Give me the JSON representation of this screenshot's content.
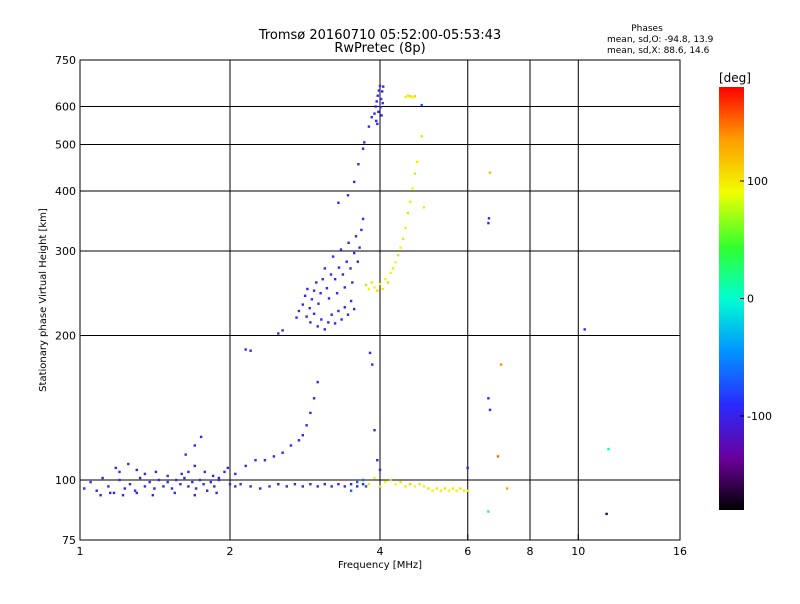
{
  "chart_data": {
    "type": "scatter",
    "title": "Tromsø 20160710 05:52:00-05:53:43",
    "subtitle": "RwPretec (8p)",
    "xlabel": "Frequency [MHz]",
    "ylabel": "Stationary phase Virtual Height [km]",
    "x_scale": "log2",
    "y_scale": "log",
    "xlim": [
      1,
      16
    ],
    "ylim": [
      75,
      750
    ],
    "x_ticks": [
      {
        "value": 1,
        "label": "1"
      },
      {
        "value": 2,
        "label": "2"
      },
      {
        "value": 4,
        "label": "4"
      },
      {
        "value": 6,
        "label": "6"
      },
      {
        "value": 8,
        "label": "8"
      },
      {
        "value": 10,
        "label": "10"
      },
      {
        "value": 16,
        "label": "16"
      }
    ],
    "y_ticks": [
      {
        "value": 75,
        "label": "75"
      },
      {
        "value": 100,
        "label": "100"
      },
      {
        "value": 200,
        "label": "200"
      },
      {
        "value": 300,
        "label": "300"
      },
      {
        "value": 400,
        "label": "400"
      },
      {
        "value": 500,
        "label": "500"
      },
      {
        "value": 600,
        "label": "600"
      },
      {
        "value": 750,
        "label": "750"
      }
    ],
    "x_gridlines": [
      2,
      4,
      6,
      8,
      10
    ],
    "y_gridlines": [
      100,
      200,
      300,
      400,
      500,
      600
    ],
    "stats": {
      "heading": "Phases",
      "line1": "mean, sd,O: -94.8, 13.9",
      "line2": "mean, sd,X:  88.6, 14.6"
    },
    "colorbar": {
      "label": "[deg]",
      "range": [
        -180,
        180
      ],
      "ticks": [
        {
          "value": 100,
          "label": "100"
        },
        {
          "value": 0,
          "label": "0"
        },
        {
          "value": -100,
          "label": "-100"
        }
      ]
    },
    "series": [
      {
        "mode": "O",
        "points": [
          [
            1.02,
            96,
            -95
          ],
          [
            1.05,
            99,
            -92
          ],
          [
            1.08,
            95,
            -100
          ],
          [
            1.11,
            101,
            -96
          ],
          [
            1.14,
            97,
            -93
          ],
          [
            1.17,
            94,
            -98
          ],
          [
            1.2,
            100,
            -95
          ],
          [
            1.23,
            96,
            -90
          ],
          [
            1.26,
            98,
            -99
          ],
          [
            1.29,
            95,
            -94
          ],
          [
            1.32,
            101,
            -97
          ],
          [
            1.35,
            97,
            -92
          ],
          [
            1.38,
            99,
            -96
          ],
          [
            1.41,
            96,
            -100
          ],
          [
            1.44,
            100,
            -93
          ],
          [
            1.47,
            97,
            -95
          ],
          [
            1.5,
            99,
            -91
          ],
          [
            1.53,
            96,
            -97
          ],
          [
            1.56,
            100,
            -94
          ],
          [
            1.59,
            98,
            -96
          ],
          [
            1.62,
            101,
            -92
          ],
          [
            1.65,
            97,
            -99
          ],
          [
            1.68,
            99,
            -95
          ],
          [
            1.71,
            96,
            -93
          ],
          [
            1.74,
            100,
            -97
          ],
          [
            1.77,
            98,
            -91
          ],
          [
            1.8,
            95,
            -96
          ],
          [
            1.83,
            99,
            -94
          ],
          [
            1.86,
            97,
            -98
          ],
          [
            1.9,
            100,
            -92
          ],
          [
            1.18,
            106,
            -95
          ],
          [
            1.2,
            104,
            -92
          ],
          [
            1.25,
            108,
            -97
          ],
          [
            1.3,
            105,
            -94
          ],
          [
            1.35,
            103,
            -99
          ],
          [
            1.42,
            104,
            -93
          ],
          [
            1.5,
            102,
            -96
          ],
          [
            1.6,
            103,
            -90
          ],
          [
            1.65,
            104,
            -95
          ],
          [
            1.7,
            107,
            -92
          ],
          [
            1.78,
            104,
            -97
          ],
          [
            1.85,
            102,
            -94
          ],
          [
            1.9,
            101,
            -91
          ],
          [
            1.95,
            104,
            -96
          ],
          [
            1.98,
            106,
            -93
          ],
          [
            1.1,
            93,
            -94
          ],
          [
            1.15,
            94,
            -97
          ],
          [
            1.22,
            93,
            -91
          ],
          [
            1.3,
            94,
            -98
          ],
          [
            1.4,
            93,
            -95
          ],
          [
            1.55,
            94,
            -92
          ],
          [
            1.7,
            93,
            -96
          ],
          [
            1.88,
            94,
            -93
          ],
          [
            1.75,
            123,
            -95
          ],
          [
            1.63,
            113,
            -92
          ],
          [
            1.7,
            118,
            -90
          ],
          [
            2.0,
            98,
            -96
          ],
          [
            2.05,
            97,
            -92
          ],
          [
            2.1,
            98,
            -95
          ],
          [
            2.2,
            97,
            -97
          ],
          [
            2.3,
            96,
            -94
          ],
          [
            2.4,
            97,
            -91
          ],
          [
            2.5,
            98,
            -96
          ],
          [
            2.6,
            97,
            -93
          ],
          [
            2.7,
            98,
            -95
          ],
          [
            2.8,
            97,
            -92
          ],
          [
            2.9,
            98,
            -97
          ],
          [
            3.0,
            97,
            -94
          ],
          [
            3.1,
            98,
            -96
          ],
          [
            3.2,
            97,
            -91
          ],
          [
            3.3,
            98,
            -95
          ],
          [
            3.4,
            97,
            -93
          ],
          [
            3.5,
            98,
            -96
          ],
          [
            3.6,
            97,
            -94
          ],
          [
            3.7,
            98,
            -92
          ],
          [
            2.05,
            103,
            -95
          ],
          [
            2.15,
            107,
            -94
          ],
          [
            2.25,
            110,
            -96
          ],
          [
            2.35,
            110,
            -92
          ],
          [
            2.45,
            112,
            -97
          ],
          [
            2.55,
            114,
            -93
          ],
          [
            2.65,
            118,
            -95
          ],
          [
            2.75,
            121,
            -91
          ],
          [
            2.8,
            124,
            -96
          ],
          [
            2.85,
            130,
            -94
          ],
          [
            2.9,
            138,
            -92
          ],
          [
            2.95,
            148,
            -97
          ],
          [
            3.0,
            160,
            -95
          ],
          [
            2.15,
            187,
            -93
          ],
          [
            2.2,
            186,
            -96
          ],
          [
            2.5,
            202,
            -92
          ],
          [
            2.55,
            205,
            -95
          ],
          [
            2.72,
            218,
            -97
          ],
          [
            2.75,
            225,
            -94
          ],
          [
            2.8,
            232,
            -92
          ],
          [
            2.83,
            242,
            -96
          ],
          [
            2.86,
            250,
            -93
          ],
          [
            2.89,
            228,
            -95
          ],
          [
            2.92,
            238,
            -91
          ],
          [
            2.95,
            248,
            -97
          ],
          [
            2.98,
            258,
            -94
          ],
          [
            3.01,
            233,
            -92
          ],
          [
            3.04,
            245,
            -96
          ],
          [
            3.07,
            262,
            -93
          ],
          [
            3.1,
            276,
            -95
          ],
          [
            3.13,
            251,
            -91
          ],
          [
            3.16,
            239,
            -97
          ],
          [
            3.19,
            268,
            -94
          ],
          [
            3.22,
            292,
            -92
          ],
          [
            3.25,
            262,
            -96
          ],
          [
            3.28,
            245,
            -93
          ],
          [
            3.31,
            277,
            -95
          ],
          [
            3.34,
            302,
            -91
          ],
          [
            3.37,
            268,
            -97
          ],
          [
            3.4,
            252,
            -94
          ],
          [
            3.43,
            285,
            -92
          ],
          [
            3.46,
            312,
            -96
          ],
          [
            3.49,
            276,
            -93
          ],
          [
            3.52,
            258,
            -95
          ],
          [
            3.55,
            297,
            -91
          ],
          [
            3.58,
            322,
            -97
          ],
          [
            3.61,
            285,
            -94
          ],
          [
            3.64,
            305,
            -92
          ],
          [
            3.67,
            332,
            -96
          ],
          [
            3.7,
            350,
            -93
          ],
          [
            2.85,
            219,
            -95
          ],
          [
            2.9,
            213,
            -92
          ],
          [
            2.95,
            222,
            -97
          ],
          [
            3.0,
            209,
            -94
          ],
          [
            3.05,
            216,
            -96
          ],
          [
            3.1,
            206,
            -91
          ],
          [
            3.15,
            213,
            -95
          ],
          [
            3.2,
            221,
            -93
          ],
          [
            3.25,
            212,
            -97
          ],
          [
            3.3,
            225,
            -94
          ],
          [
            3.35,
            216,
            -92
          ],
          [
            3.4,
            229,
            -96
          ],
          [
            3.45,
            221,
            -93
          ],
          [
            3.5,
            236,
            -95
          ],
          [
            3.55,
            227,
            -91
          ],
          [
            3.3,
            378,
            -95
          ],
          [
            3.45,
            392,
            -92
          ],
          [
            3.55,
            418,
            -97
          ],
          [
            3.62,
            455,
            -94
          ],
          [
            3.7,
            490,
            -96
          ],
          [
            3.72,
            505,
            -93
          ],
          [
            3.8,
            545,
            -95
          ],
          [
            3.85,
            570,
            -92
          ],
          [
            3.9,
            580,
            -95
          ],
          [
            3.92,
            600,
            -92
          ],
          [
            3.94,
            615,
            -97
          ],
          [
            3.96,
            632,
            -94
          ],
          [
            3.98,
            648,
            -96
          ],
          [
            4.0,
            662,
            -91
          ],
          [
            4.02,
            622,
            -95
          ],
          [
            4.04,
            645,
            -93
          ],
          [
            4.06,
            660,
            -97
          ],
          [
            3.93,
            560,
            -94
          ],
          [
            3.97,
            585,
            -92
          ],
          [
            4.01,
            598,
            -96
          ],
          [
            4.03,
            575,
            -93
          ],
          [
            4.05,
            610,
            -95
          ],
          [
            3.95,
            552,
            -91
          ],
          [
            3.82,
            184,
            -95
          ],
          [
            3.86,
            174,
            -93
          ],
          [
            3.9,
            127,
            -97
          ],
          [
            3.95,
            110,
            -94
          ],
          [
            4.0,
            105,
            -92
          ],
          [
            3.5,
            95,
            -70
          ],
          [
            3.6,
            99,
            -65
          ],
          [
            3.7,
            100,
            -60
          ],
          [
            3.75,
            97,
            -75
          ],
          [
            6.6,
            343,
            -96
          ],
          [
            6.62,
            351,
            -93
          ],
          [
            6.6,
            148,
            -95
          ],
          [
            6.65,
            140,
            -92
          ],
          [
            6.0,
            106,
            -100
          ],
          [
            10.3,
            206,
            -97
          ],
          [
            4.85,
            604,
            -70
          ]
        ]
      },
      {
        "mode": "X",
        "points": [
          [
            3.8,
            98,
            100
          ],
          [
            3.9,
            101,
            95
          ],
          [
            4.0,
            97,
            105
          ],
          [
            4.1,
            99,
            92
          ],
          [
            4.2,
            100,
            110
          ],
          [
            4.3,
            98,
            88
          ],
          [
            4.4,
            99,
            102
          ],
          [
            4.5,
            97,
            95
          ],
          [
            4.6,
            98,
            108
          ],
          [
            4.7,
            97,
            90
          ],
          [
            4.8,
            98,
            100
          ],
          [
            4.9,
            97,
            96
          ],
          [
            5.0,
            96,
            104
          ],
          [
            5.1,
            95,
            92
          ],
          [
            5.2,
            96,
            101
          ],
          [
            5.3,
            95,
            97
          ],
          [
            5.4,
            96,
            106
          ],
          [
            5.5,
            95,
            93
          ],
          [
            5.6,
            96,
            100
          ],
          [
            5.7,
            95,
            95
          ],
          [
            5.8,
            96,
            103
          ],
          [
            5.9,
            95,
            98
          ],
          [
            6.0,
            95,
            100
          ],
          [
            3.75,
            255,
            110
          ],
          [
            3.8,
            250,
            95
          ],
          [
            3.85,
            258,
            102
          ],
          [
            3.9,
            252,
            92
          ],
          [
            3.95,
            248,
            105
          ],
          [
            4.0,
            256,
            98
          ],
          [
            4.05,
            250,
            100
          ],
          [
            4.1,
            262,
            93
          ],
          [
            4.15,
            258,
            108
          ],
          [
            4.2,
            270,
            96
          ],
          [
            4.25,
            276,
            101
          ],
          [
            4.3,
            284,
            90
          ],
          [
            4.35,
            294,
            104
          ],
          [
            4.4,
            305,
            97
          ],
          [
            4.45,
            318,
            100
          ],
          [
            4.5,
            335,
            94
          ],
          [
            4.55,
            360,
            106
          ],
          [
            4.6,
            380,
            99
          ],
          [
            4.65,
            405,
            92
          ],
          [
            4.7,
            435,
            103
          ],
          [
            4.75,
            460,
            98
          ],
          [
            4.5,
            628,
            95
          ],
          [
            4.55,
            632,
            100
          ],
          [
            4.6,
            630,
            105
          ],
          [
            4.65,
            627,
            92
          ],
          [
            4.7,
            630,
            110
          ],
          [
            4.9,
            370,
            100
          ],
          [
            4.85,
            520,
            105
          ],
          [
            6.65,
            437,
            120
          ],
          [
            7.0,
            174,
            140
          ],
          [
            6.9,
            112,
            150
          ],
          [
            7.2,
            96,
            130
          ],
          [
            6.6,
            86,
            20
          ],
          [
            11.5,
            116,
            10
          ],
          [
            11.4,
            85,
            -160
          ]
        ]
      }
    ]
  }
}
